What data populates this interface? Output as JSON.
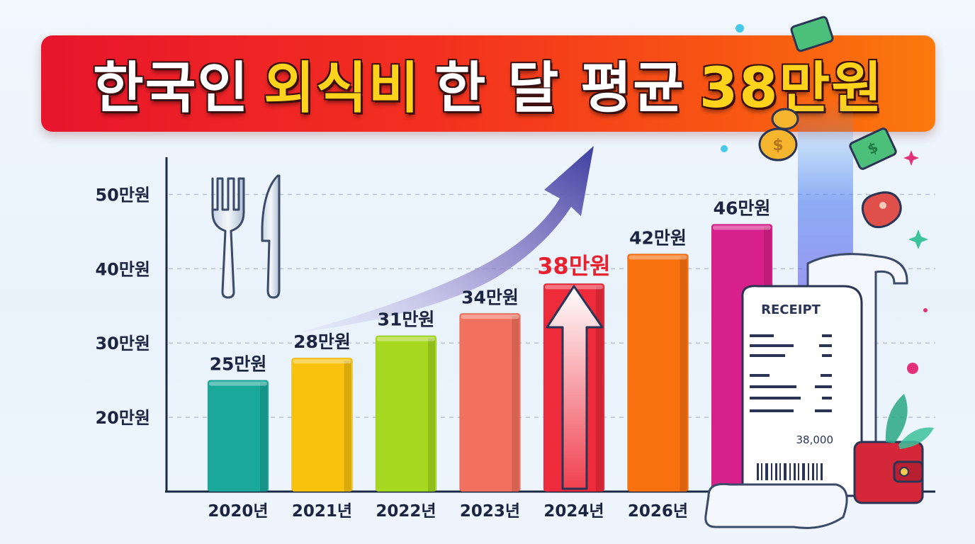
{
  "title": {
    "part1": "한국인",
    "part2": "외식비",
    "part3": "한 달 평균",
    "part4": "38만원",
    "part1_color": "#ffffff",
    "part2_color": "#ffd21c",
    "part4_color": "#ffd21c"
  },
  "chart_data": {
    "type": "bar",
    "categories": [
      "2020년",
      "2021년",
      "2022년",
      "2023년",
      "2024년",
      "2026년",
      ""
    ],
    "values": [
      25,
      28,
      31,
      34,
      38,
      42,
      46
    ],
    "data_labels": [
      "25만원",
      "28만원",
      "31만원",
      "34만원",
      "38만원",
      "42만원",
      "46만원"
    ],
    "highlight_index": 4,
    "highlight_label_color": "#e8212e",
    "bar_colors": [
      "#1aa89a",
      "#f9c20f",
      "#a6d81f",
      "#f2705e",
      "#ee2b3b",
      "#f9700f",
      "#d8208a"
    ],
    "y_tick_values": [
      20,
      30,
      40,
      50
    ],
    "y_tick_labels": [
      "20만원",
      "30만원",
      "40만원",
      "50만원"
    ],
    "ylim": [
      10,
      55
    ],
    "grid": true,
    "title": "한국인 외식비 한 달 평균 38만원"
  },
  "receipt": {
    "header": "RECEIPT",
    "total": "38,000"
  },
  "icons": [
    "fork-icon",
    "knife-icon",
    "trend-arrow-icon",
    "up-arrow-icon",
    "receipt-icon",
    "wallet-icon",
    "coin-icon",
    "banknote-icon",
    "meat-icon"
  ]
}
